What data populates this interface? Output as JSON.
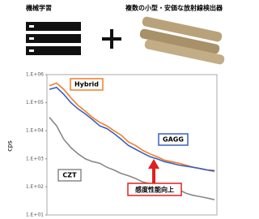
{
  "header": {
    "left": "機械学習",
    "right": "複数の小型・安価な放射線検出器"
  },
  "chart_data": {
    "type": "line",
    "ylabel": "cps",
    "log_y": true,
    "ylim": [
      10,
      1000000
    ],
    "yticks": [
      {
        "value": 10,
        "label": "1.E+01"
      },
      {
        "value": 100,
        "label": "1.E+02"
      },
      {
        "value": 1000,
        "label": "1.E+03"
      },
      {
        "value": 10000,
        "label": "1.E+04"
      },
      {
        "value": 100000,
        "label": "1.E+05"
      },
      {
        "value": 1000000,
        "label": "1.E+06"
      }
    ],
    "series": [
      {
        "name": "Hybrid",
        "color": "#f07f2a",
        "values": [
          400000,
          500000,
          300000,
          150000,
          80000,
          50000,
          30000,
          20000,
          15000,
          10000,
          7000,
          4000,
          3000,
          2000,
          1500,
          1200,
          900,
          800,
          700,
          600,
          500,
          450,
          400,
          350
        ]
      },
      {
        "name": "GAGG",
        "color": "#3a5fc0",
        "values": [
          300000,
          350000,
          200000,
          100000,
          60000,
          40000,
          25000,
          15000,
          12000,
          8000,
          5000,
          3000,
          2200,
          1600,
          1200,
          1000,
          800,
          700,
          600,
          550,
          500,
          450,
          400,
          380
        ]
      },
      {
        "name": "CZT",
        "color": "#888888",
        "values": [
          30000,
          15000,
          5000,
          2500,
          1500,
          1000,
          800,
          700,
          500,
          400,
          300,
          250,
          200,
          150,
          130,
          110,
          100,
          90,
          80,
          60,
          50,
          45,
          40,
          35
        ]
      }
    ],
    "annotation": "感度性能向上"
  }
}
